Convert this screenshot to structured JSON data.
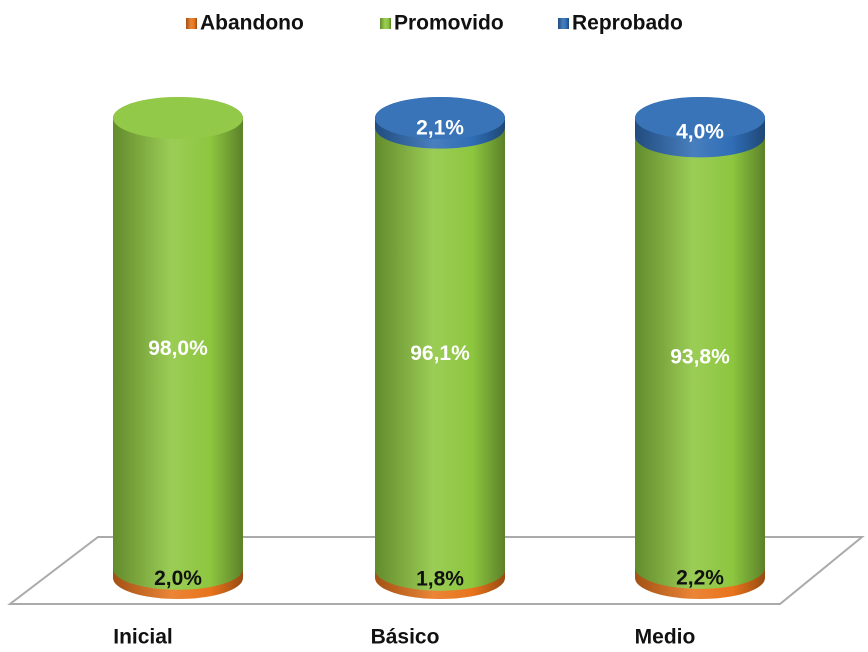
{
  "chart_data": {
    "type": "stacked_cylinder",
    "categories": [
      "Inicial",
      "Básico",
      "Medio"
    ],
    "series": [
      {
        "name": "Abandono",
        "color": "#e8741c",
        "values": [
          2.0,
          1.8,
          2.2
        ],
        "value_labels": [
          "2,0%",
          "1,8%",
          "2,2%"
        ]
      },
      {
        "name": "Promovido",
        "color": "#8dc63f",
        "values": [
          98.0,
          96.1,
          93.8
        ],
        "value_labels": [
          "98,0%",
          "96,1%",
          "93,8%"
        ]
      },
      {
        "name": "Reprobado",
        "color": "#2f6db5",
        "values": [
          0,
          2.1,
          4.0
        ],
        "value_labels": [
          null,
          "2,1%",
          "4,0%"
        ]
      }
    ]
  }
}
